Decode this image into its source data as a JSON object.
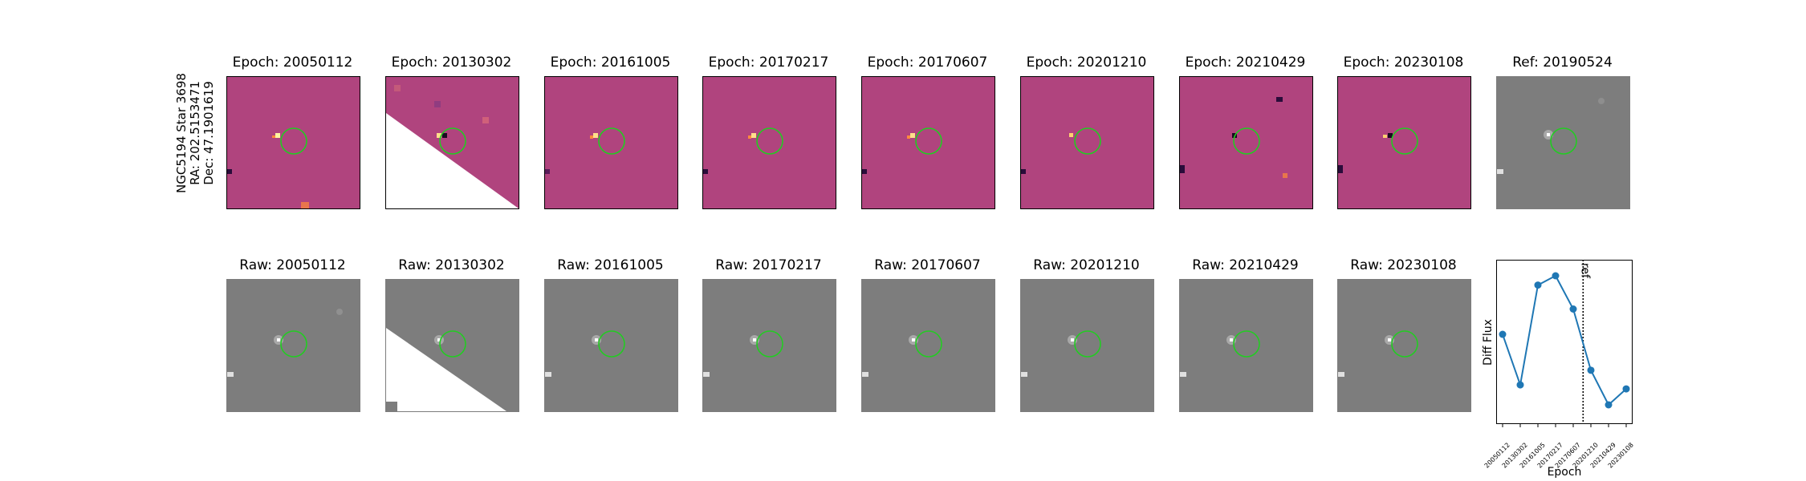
{
  "target": {
    "lines": [
      "NGC5194 Star 3698",
      "RA: 202.5153471",
      "Dec: 47.1901619"
    ]
  },
  "top_row": {
    "titles": [
      "Epoch: 20050112",
      "Epoch: 20130302",
      "Epoch: 20161005",
      "Epoch: 20170217",
      "Epoch: 20170607",
      "Epoch: 20201210",
      "Epoch: 20210429",
      "Epoch: 20230108",
      "Ref: 20190524"
    ]
  },
  "bottom_row": {
    "titles": [
      "Raw: 20050112",
      "Raw: 20130302",
      "Raw: 20161005",
      "Raw: 20170217",
      "Raw: 20170607",
      "Raw: 20201210",
      "Raw: 20210429",
      "Raw: 20230108"
    ]
  },
  "colors": {
    "diff_background": "#b0447e",
    "raw_background": "#7d7d7d",
    "circle": "#22cc22",
    "series": "#1f77b4"
  },
  "chart_data": {
    "type": "line",
    "x": [
      "20050112",
      "20130302",
      "20161005",
      "20170217",
      "20170607",
      "20201210",
      "20210429",
      "20230108"
    ],
    "series": [
      {
        "values": [
          0.56,
          0.18,
          0.93,
          1.0,
          0.75,
          0.29,
          0.03,
          0.15
        ]
      }
    ],
    "ref_line": {
      "x": "20190524",
      "label": "ref"
    },
    "xlabel": "Epoch",
    "ylabel": "Diff Flux",
    "grid": false
  }
}
